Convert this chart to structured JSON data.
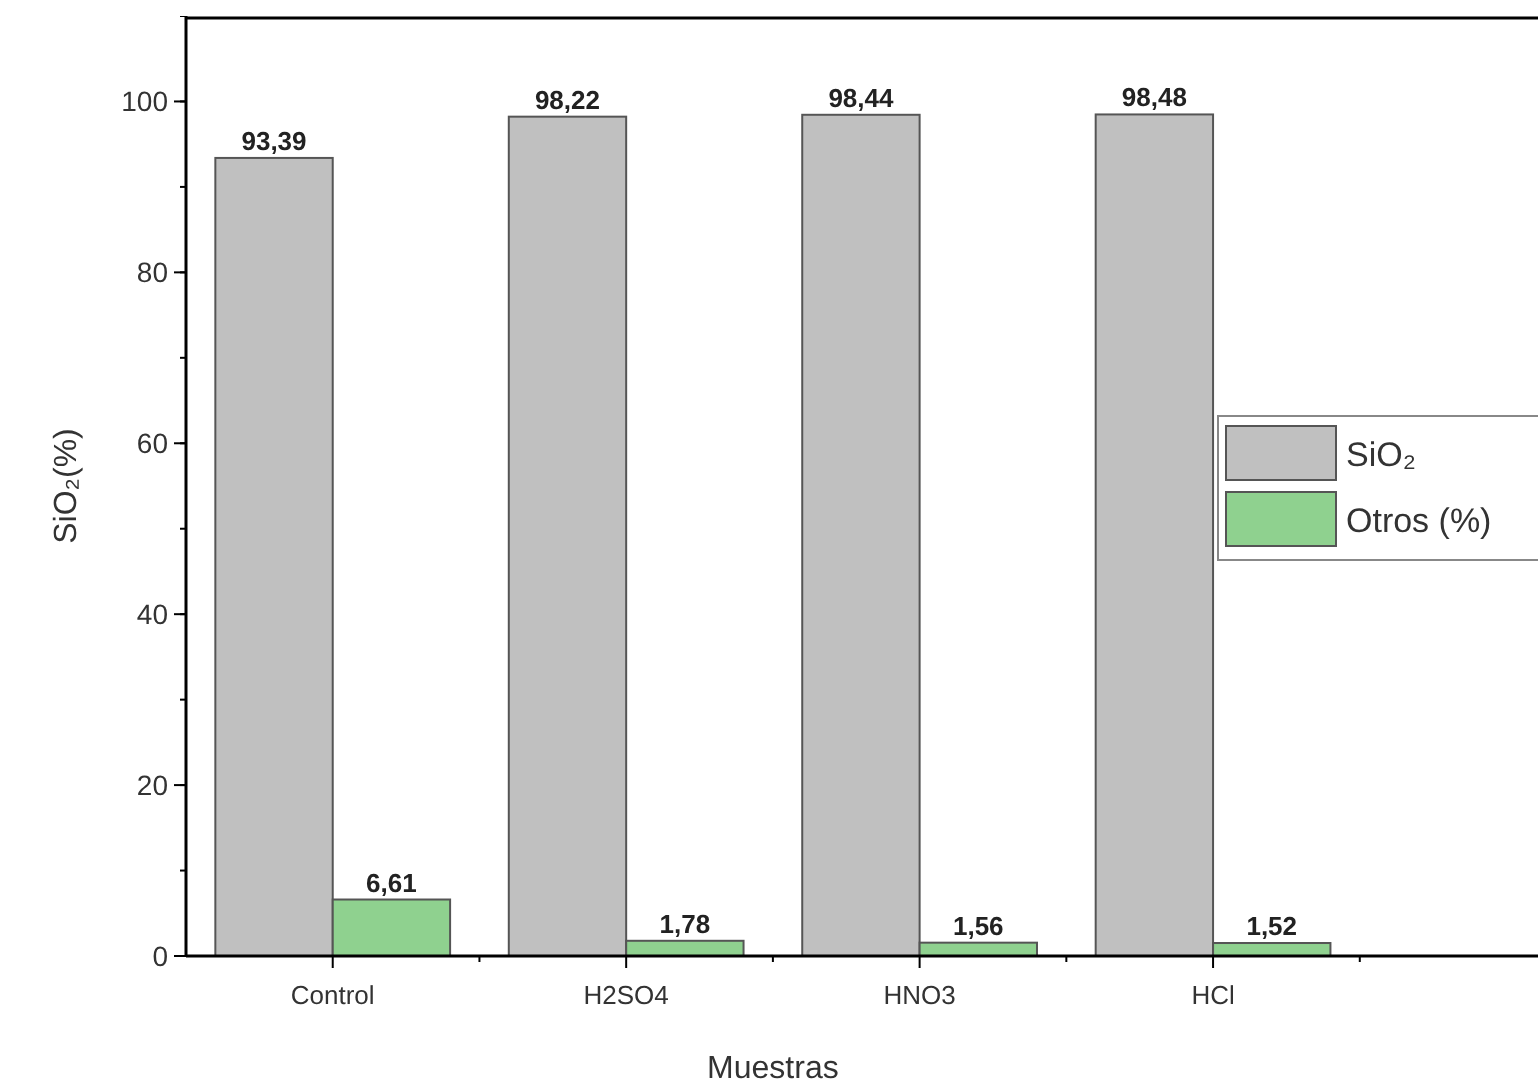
{
  "chart_data": {
    "type": "bar",
    "xlabel": "Muestras",
    "ylabel": "SiO₂(%)",
    "categories": [
      "Control",
      "H2SO4",
      "HNO3",
      "HCl"
    ],
    "series": [
      {
        "name": "SiO₂",
        "color": "#c0c0c0",
        "values": [
          93.39,
          98.22,
          98.44,
          98.48
        ],
        "value_labels": [
          "93,39",
          "98,22",
          "98,44",
          "98,48"
        ]
      },
      {
        "name": "Otros (%)",
        "color": "#8fd18f",
        "values": [
          6.61,
          1.78,
          1.56,
          1.52
        ],
        "value_labels": [
          "6,61",
          "1,78",
          "1,56",
          "1,52"
        ]
      }
    ],
    "ylim": [
      0,
      110
    ],
    "yticks": [
      0,
      20,
      40,
      60,
      80,
      100
    ],
    "legend": "right"
  }
}
